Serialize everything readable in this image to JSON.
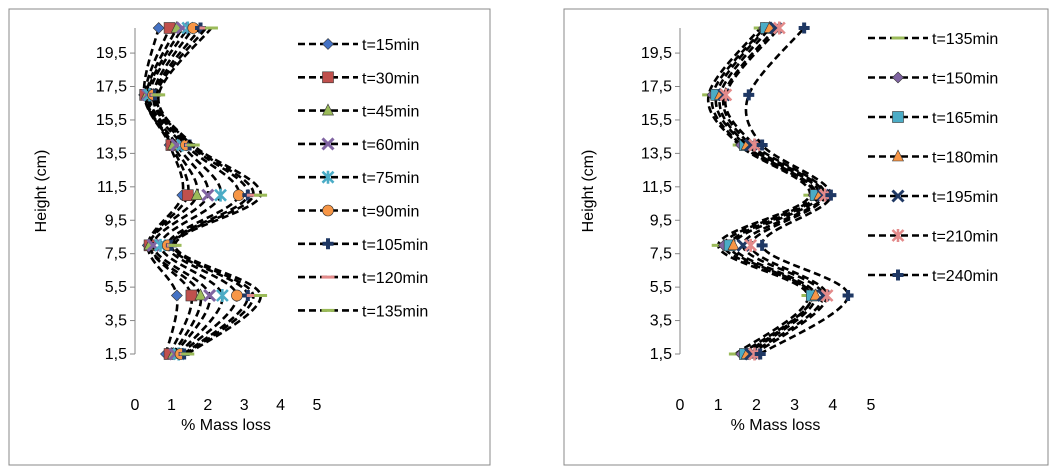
{
  "chart_data": [
    {
      "type": "line",
      "title": "",
      "xlabel": "% Mass loss",
      "ylabel": "Height (cm)",
      "xlim": [
        0,
        5
      ],
      "ylim": [
        1.5,
        21
      ],
      "x_ticks": [
        "0",
        "1",
        "2",
        "3",
        "4",
        "5"
      ],
      "y_ticks": [
        "1,5",
        "3,5",
        "5,5",
        "7,5",
        "9,5",
        "11,5",
        "13,5",
        "15,5",
        "17,5",
        "19,5"
      ],
      "y_tick_values": [
        1.5,
        3.5,
        5.5,
        7.5,
        9.5,
        11.5,
        13.5,
        15.5,
        17.5,
        19.5
      ],
      "heights": [
        1.5,
        5,
        8,
        11,
        14,
        17,
        21
      ],
      "grid": false,
      "legend": "right",
      "series": [
        {
          "name": "t=15min",
          "marker": "diamond",
          "color": "#4472C4",
          "values": [
            0.85,
            1.15,
            0.35,
            1.3,
            0.95,
            0.25,
            0.65
          ]
        },
        {
          "name": "t=30min",
          "marker": "square",
          "color": "#C0504D",
          "values": [
            0.95,
            1.55,
            0.4,
            1.45,
            1.0,
            0.28,
            0.95
          ]
        },
        {
          "name": "t=45min",
          "marker": "triangle",
          "color": "#9BBB59",
          "values": [
            1.05,
            1.8,
            0.4,
            1.7,
            1.05,
            0.32,
            1.15
          ]
        },
        {
          "name": "t=60min",
          "marker": "x",
          "color": "#8064A2",
          "values": [
            1.1,
            2.05,
            0.5,
            2.0,
            1.15,
            0.35,
            1.3
          ]
        },
        {
          "name": "t=75min",
          "marker": "star",
          "color": "#4BACC6",
          "values": [
            1.2,
            2.4,
            0.7,
            2.35,
            1.3,
            0.4,
            1.45
          ]
        },
        {
          "name": "t=90min",
          "marker": "circle",
          "color": "#F79646",
          "values": [
            1.25,
            2.8,
            0.9,
            2.85,
            1.4,
            0.5,
            1.6
          ]
        },
        {
          "name": "t=105min",
          "marker": "plus",
          "color": "#1F3864",
          "values": [
            1.35,
            3.1,
            1.0,
            3.1,
            1.5,
            0.55,
            1.8
          ]
        },
        {
          "name": "t=120min",
          "marker": "dash",
          "color": "#E38A8A",
          "values": [
            1.4,
            3.25,
            1.05,
            3.25,
            1.55,
            0.6,
            1.95
          ]
        },
        {
          "name": "t=135min",
          "marker": "dash",
          "color": "#9BBB59",
          "values": [
            1.45,
            3.45,
            1.1,
            3.45,
            1.6,
            0.65,
            2.1
          ]
        }
      ]
    },
    {
      "type": "line",
      "title": "",
      "xlabel": "% Mass loss",
      "ylabel": "Height (cm)",
      "xlim": [
        0,
        5
      ],
      "ylim": [
        1.5,
        21
      ],
      "x_ticks": [
        "0",
        "1",
        "2",
        "3",
        "4",
        "5"
      ],
      "y_ticks": [
        "1,5",
        "3,5",
        "5,5",
        "7,5",
        "9,5",
        "11,5",
        "13,5",
        "15,5",
        "17,5",
        "19,5"
      ],
      "y_tick_values": [
        1.5,
        3.5,
        5.5,
        7.5,
        9.5,
        11.5,
        13.5,
        15.5,
        17.5,
        19.5
      ],
      "heights": [
        1.5,
        5,
        8,
        11,
        14,
        17,
        21
      ],
      "grid": false,
      "legend": "right",
      "series": [
        {
          "name": "t=135min",
          "marker": "dash",
          "color": "#9BBB59",
          "values": [
            1.45,
            3.35,
            1.0,
            3.4,
            1.55,
            0.75,
            2.1
          ]
        },
        {
          "name": "t=150min",
          "marker": "diamond",
          "color": "#8064A2",
          "values": [
            1.6,
            3.45,
            1.15,
            3.5,
            1.6,
            0.85,
            2.2
          ]
        },
        {
          "name": "t=165min",
          "marker": "square",
          "color": "#4BACC6",
          "values": [
            1.7,
            3.45,
            1.3,
            3.55,
            1.7,
            0.95,
            2.25
          ]
        },
        {
          "name": "t=180min",
          "marker": "triangle",
          "color": "#F79646",
          "values": [
            1.75,
            3.55,
            1.4,
            3.65,
            1.75,
            1.05,
            2.35
          ]
        },
        {
          "name": "t=195min",
          "marker": "x",
          "color": "#1F3864",
          "values": [
            1.85,
            3.75,
            1.65,
            3.75,
            1.85,
            1.15,
            2.5
          ]
        },
        {
          "name": "t=210min",
          "marker": "star",
          "color": "#E38A8A",
          "values": [
            1.95,
            3.85,
            1.85,
            3.8,
            1.95,
            1.2,
            2.6
          ]
        },
        {
          "name": "t=240min",
          "marker": "plus",
          "color": "#1F3864",
          "values": [
            2.1,
            4.4,
            2.15,
            3.95,
            2.15,
            1.8,
            3.25
          ]
        }
      ]
    }
  ]
}
